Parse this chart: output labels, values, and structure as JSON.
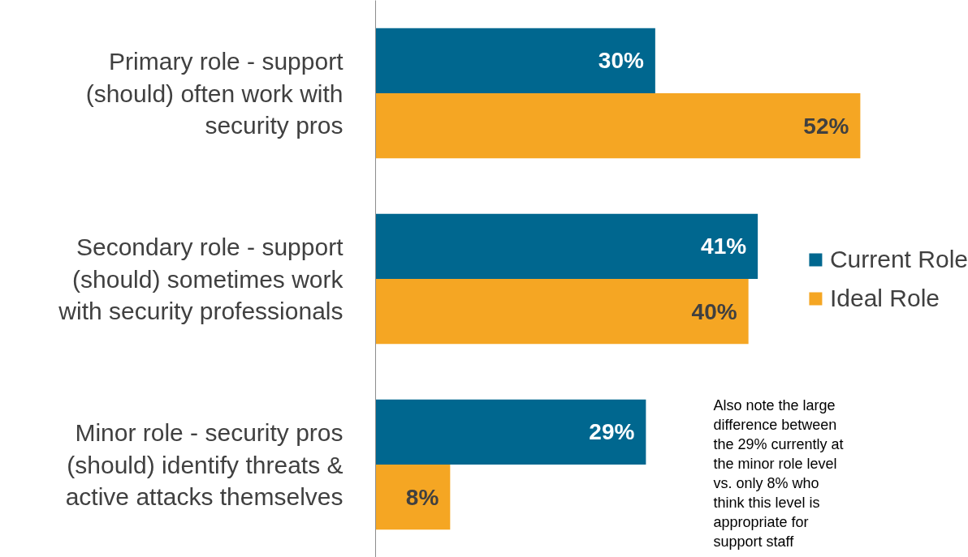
{
  "chart_data": {
    "type": "bar",
    "orientation": "horizontal",
    "categories": [
      "Primary role - support (should) often work with security pros",
      "Secondary role - support (should) sometimes work with security professionals",
      "Minor role - security pros (should) identify threats & active attacks themselves"
    ],
    "series": [
      {
        "name": "Current Role",
        "color": "#00678f",
        "values": [
          30,
          41,
          29
        ],
        "value_labels": [
          "30%",
          "41%",
          "29%"
        ]
      },
      {
        "name": "Ideal Role",
        "color": "#f5a623",
        "values": [
          52,
          40,
          8
        ],
        "value_labels": [
          "52%",
          "40%",
          "8%"
        ]
      }
    ],
    "legend": "right",
    "grid": false,
    "annotations": [
      "Also note the large difference between the 29% currently at the minor role level vs. only 8% who think this level is appropriate for support staff"
    ]
  }
}
